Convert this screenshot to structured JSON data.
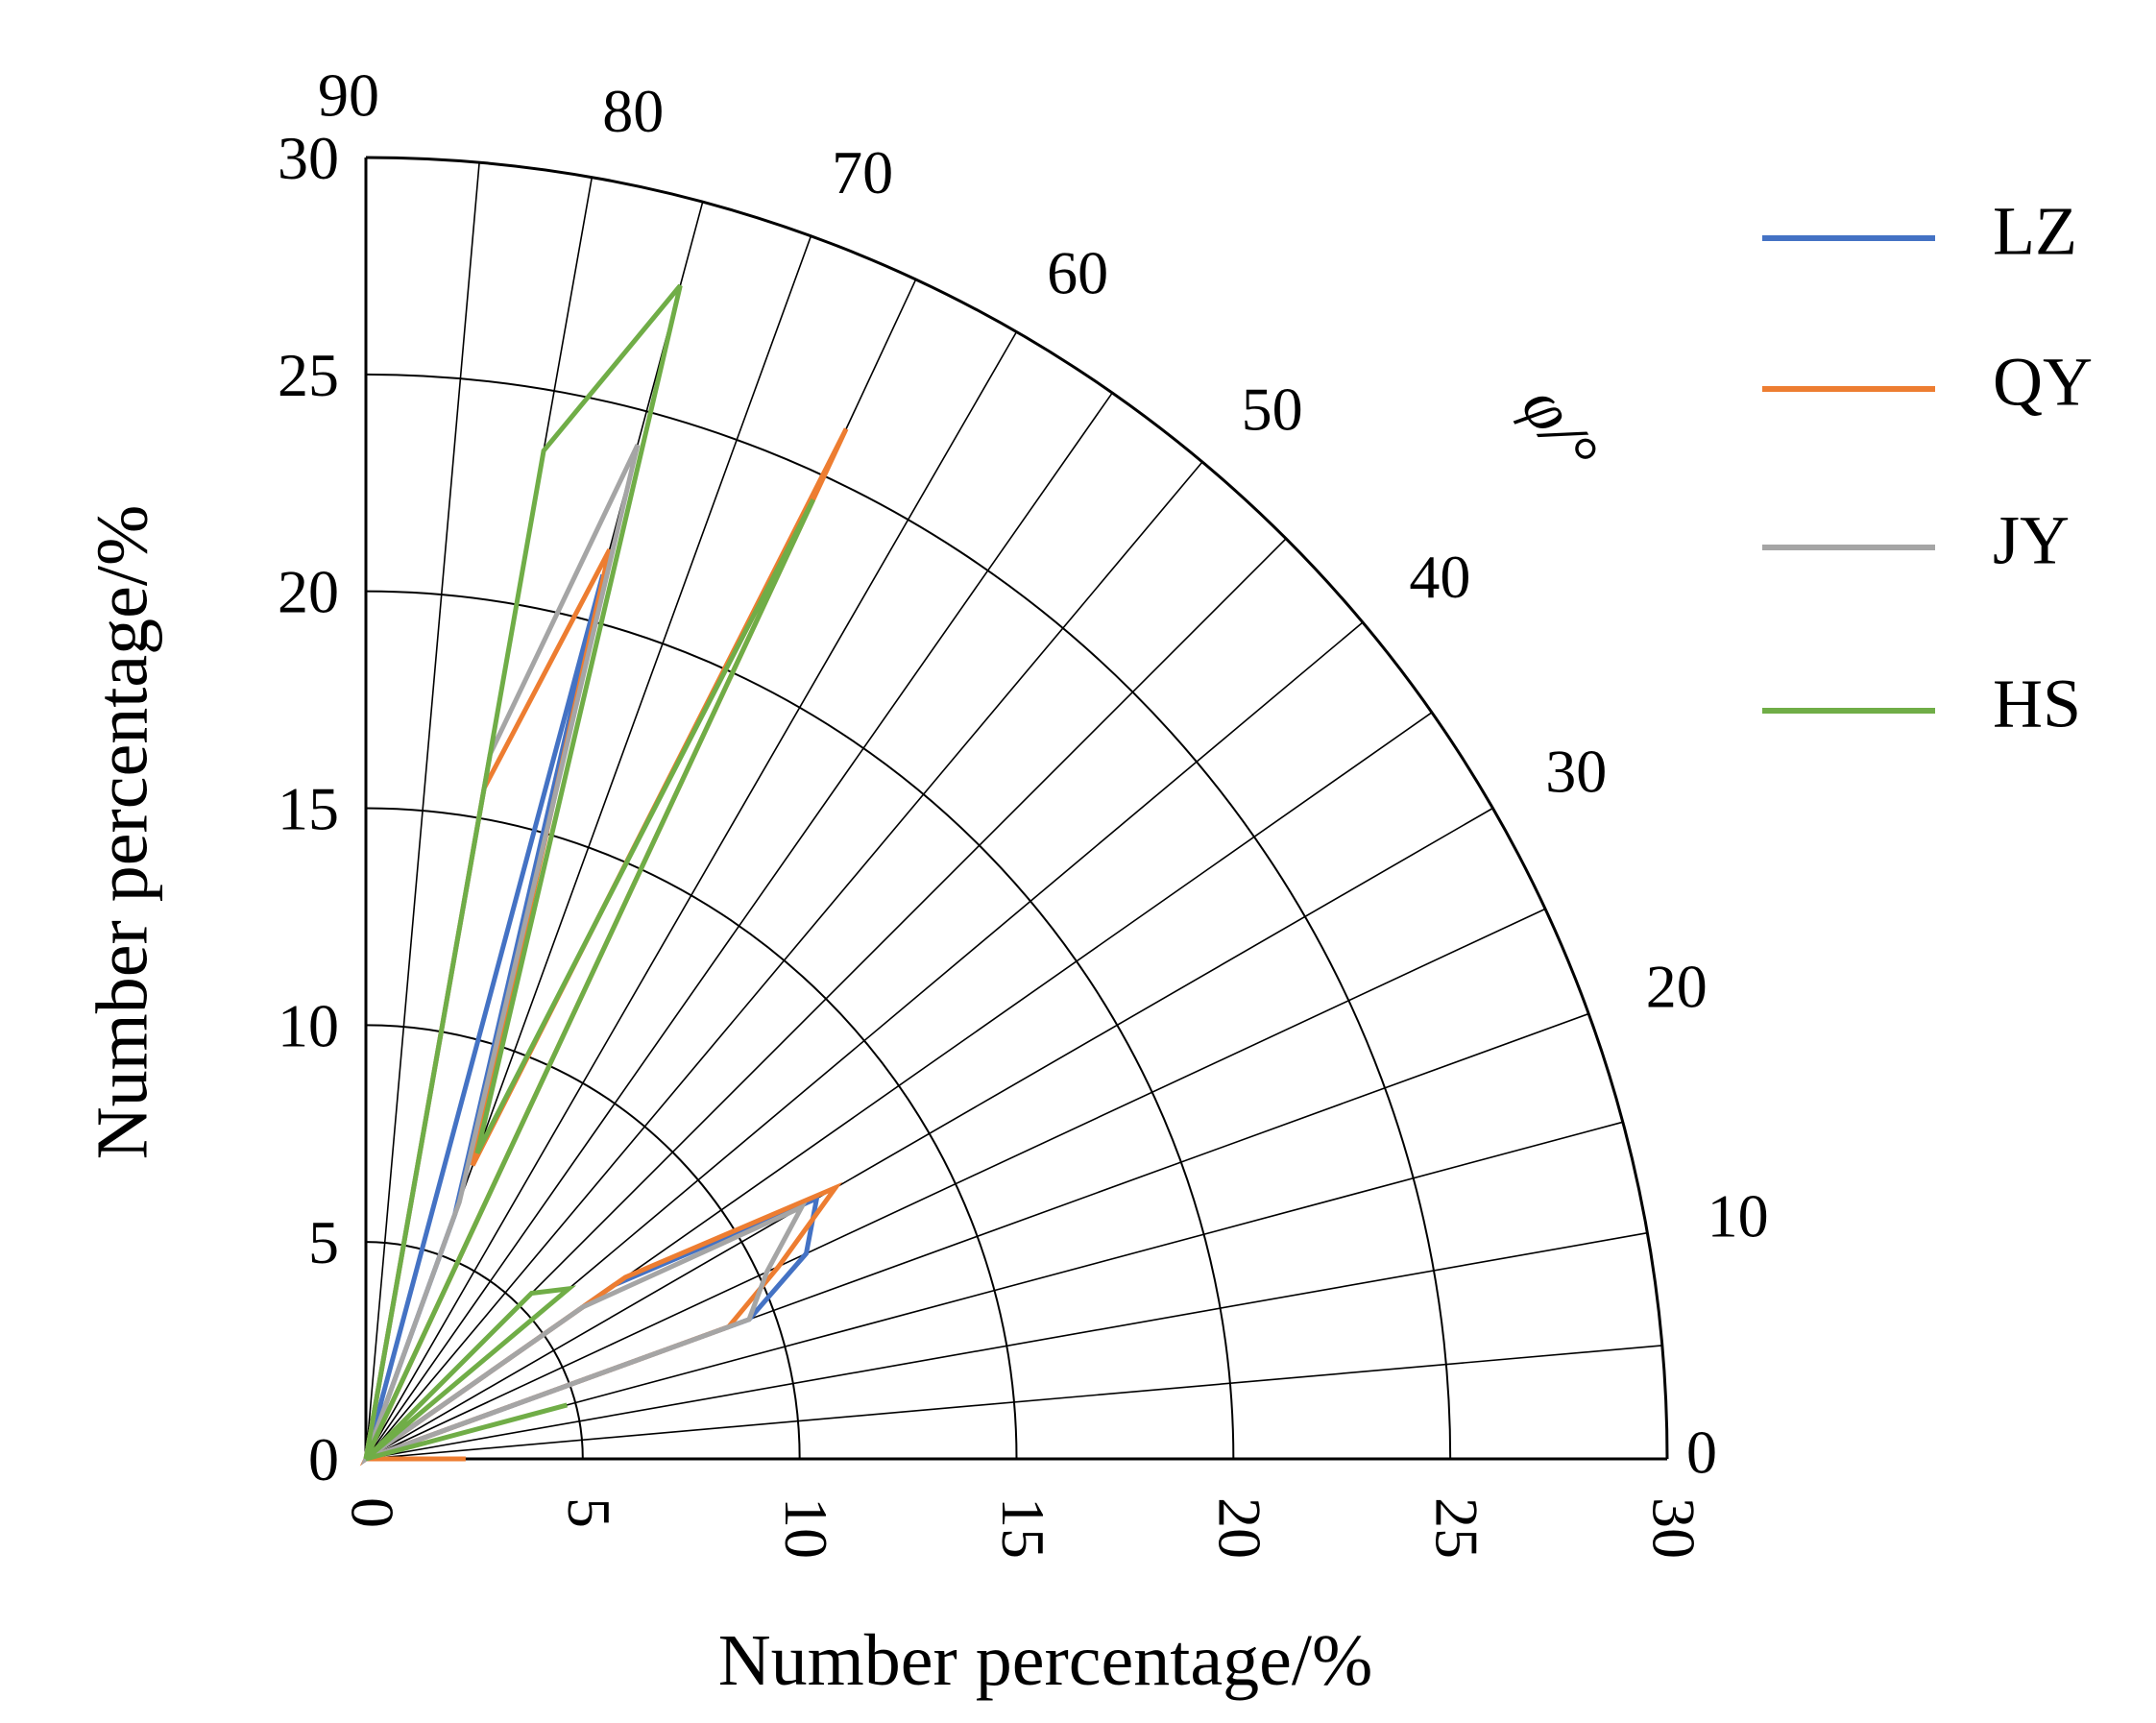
{
  "chart_data": {
    "type": "line",
    "subtype": "polar-quadrant",
    "title": "",
    "xlabel": "Number percentage/%",
    "ylabel": "Number percentage/%",
    "angle_label": "φ/°",
    "radial_range": [
      0,
      30
    ],
    "radial_ticks": [
      "0",
      "5",
      "10",
      "15",
      "20",
      "25",
      "30"
    ],
    "angle_range": [
      0,
      90
    ],
    "angle_ticks": [
      "0",
      "10",
      "20",
      "30",
      "40",
      "50",
      "60",
      "70",
      "80",
      "90"
    ],
    "grid": true,
    "legend_position": "top-right",
    "angles": [
      0,
      5,
      10,
      15,
      20,
      25,
      30,
      35,
      40,
      45,
      50,
      55,
      60,
      65,
      70,
      75,
      80,
      85,
      90
    ],
    "series": [
      {
        "name": "LZ",
        "color": "#4472C4",
        "values": [
          2.2,
          0,
          0,
          0,
          9.4,
          11.2,
          12.0,
          7.0,
          0,
          0,
          0,
          0,
          0,
          0,
          6.0,
          21.1,
          0,
          0,
          0
        ]
      },
      {
        "name": "QY",
        "color": "#ED7D31",
        "values": [
          2.3,
          0,
          0,
          0,
          8.9,
          10.5,
          12.5,
          7.3,
          0,
          0,
          0,
          0,
          0,
          26.2,
          7.2,
          21.7,
          15.7,
          0,
          0
        ]
      },
      {
        "name": "JY",
        "color": "#A5A5A5",
        "values": [
          0,
          0,
          0,
          0,
          9.4,
          10.2,
          11.6,
          6.1,
          0,
          0,
          0,
          0,
          0,
          0,
          6.3,
          24.2,
          16.5,
          0,
          0
        ]
      },
      {
        "name": "HS",
        "color": "#70AD47",
        "values": [
          0,
          0,
          0,
          4.8,
          0,
          0,
          0,
          0,
          6.1,
          5.4,
          0,
          0,
          0,
          24.4,
          7.5,
          28.0,
          23.6,
          0,
          0
        ]
      }
    ]
  }
}
